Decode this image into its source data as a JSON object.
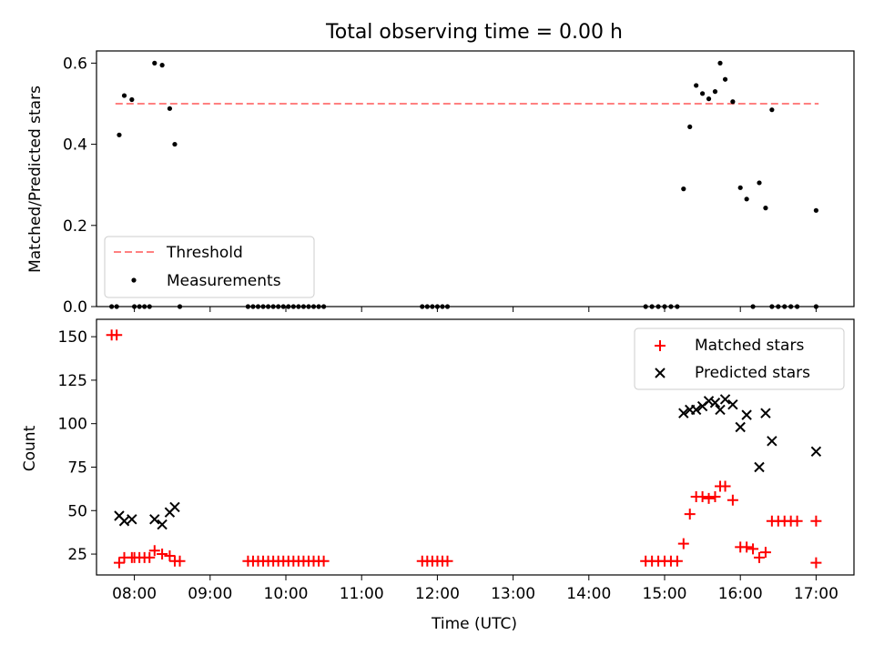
{
  "title": "Total observing time = 0.00 h",
  "colors": {
    "threshold": "#ff8080",
    "measurement": "#000000",
    "matched": "#ff0000",
    "predicted": "#000000"
  },
  "chart_data": [
    {
      "type": "scatter",
      "ylabel": "Matched/Predicted stars",
      "xlabel": "",
      "x_axis": "time (UTC)",
      "xlim": [
        "07:30",
        "17:30"
      ],
      "ylim": [
        0,
        0.63
      ],
      "yticks": [
        0.0,
        0.2,
        0.4,
        0.6
      ],
      "ytick_labels": [
        "0.0",
        "0.2",
        "0.4",
        "0.6"
      ],
      "legend_position": "lower-left",
      "legend": [
        "Threshold",
        "Measurements"
      ],
      "threshold": {
        "name": "Threshold",
        "y": 0.5,
        "x_range": [
          "07:45",
          "17:02"
        ]
      },
      "series": [
        {
          "name": "Measurements",
          "points": [
            [
              "07:42",
              0
            ],
            [
              "07:46",
              0
            ],
            [
              "07:48",
              0.423
            ],
            [
              "07:52",
              0.52
            ],
            [
              "07:58",
              0.51
            ],
            [
              "08:00",
              0
            ],
            [
              "08:04",
              0
            ],
            [
              "08:08",
              0
            ],
            [
              "08:12",
              0
            ],
            [
              "08:16",
              0.6
            ],
            [
              "08:22",
              0.595
            ],
            [
              "08:28",
              0.488
            ],
            [
              "08:32",
              0.4
            ],
            [
              "08:36",
              0
            ],
            [
              "09:30",
              0
            ],
            [
              "09:34",
              0
            ],
            [
              "09:38",
              0
            ],
            [
              "09:42",
              0
            ],
            [
              "09:46",
              0
            ],
            [
              "09:50",
              0
            ],
            [
              "09:54",
              0
            ],
            [
              "09:58",
              0
            ],
            [
              "10:02",
              0
            ],
            [
              "10:06",
              0
            ],
            [
              "10:10",
              0
            ],
            [
              "10:14",
              0
            ],
            [
              "10:18",
              0
            ],
            [
              "10:22",
              0
            ],
            [
              "10:26",
              0
            ],
            [
              "10:30",
              0
            ],
            [
              "11:48",
              0
            ],
            [
              "11:52",
              0
            ],
            [
              "11:56",
              0
            ],
            [
              "12:00",
              0
            ],
            [
              "12:04",
              0
            ],
            [
              "12:08",
              0
            ],
            [
              "14:45",
              0
            ],
            [
              "14:50",
              0
            ],
            [
              "14:55",
              0
            ],
            [
              "15:00",
              0
            ],
            [
              "15:05",
              0
            ],
            [
              "15:10",
              0
            ],
            [
              "15:15",
              0.29
            ],
            [
              "15:20",
              0.443
            ],
            [
              "15:25",
              0.545
            ],
            [
              "15:30",
              0.525
            ],
            [
              "15:35",
              0.512
            ],
            [
              "15:40",
              0.53
            ],
            [
              "15:44",
              0.6
            ],
            [
              "15:48",
              0.56
            ],
            [
              "15:54",
              0.505
            ],
            [
              "16:00",
              0.293
            ],
            [
              "16:05",
              0.265
            ],
            [
              "16:10",
              0
            ],
            [
              "16:15",
              0.305
            ],
            [
              "16:20",
              0.243
            ],
            [
              "16:25",
              0.485
            ],
            [
              "16:25",
              0
            ],
            [
              "16:30",
              0
            ],
            [
              "16:35",
              0
            ],
            [
              "16:40",
              0
            ],
            [
              "16:45",
              0
            ],
            [
              "17:00",
              0.237
            ],
            [
              "17:00",
              0
            ]
          ]
        }
      ]
    },
    {
      "type": "scatter",
      "ylabel": "Count",
      "xlabel": "Time (UTC)",
      "xlim": [
        "07:30",
        "17:30"
      ],
      "ylim": [
        13,
        160
      ],
      "yticks": [
        25,
        50,
        75,
        100,
        125,
        150
      ],
      "ytick_labels": [
        "25",
        "50",
        "75",
        "100",
        "125",
        "150"
      ],
      "xticks": [
        "08:00",
        "09:00",
        "10:00",
        "11:00",
        "12:00",
        "13:00",
        "14:00",
        "15:00",
        "16:00",
        "17:00"
      ],
      "legend_position": "top-right",
      "legend": [
        "Matched stars",
        "Predicted stars"
      ],
      "series": [
        {
          "name": "Matched stars",
          "marker": "plus",
          "points": [
            [
              "07:42",
              151
            ],
            [
              "07:46",
              151
            ],
            [
              "07:48",
              20
            ],
            [
              "07:52",
              23
            ],
            [
              "07:58",
              23
            ],
            [
              "08:00",
              23
            ],
            [
              "08:04",
              23
            ],
            [
              "08:08",
              23
            ],
            [
              "08:12",
              23
            ],
            [
              "08:16",
              27
            ],
            [
              "08:22",
              25
            ],
            [
              "08:28",
              24
            ],
            [
              "08:32",
              21
            ],
            [
              "08:36",
              21
            ],
            [
              "09:30",
              21
            ],
            [
              "09:34",
              21
            ],
            [
              "09:38",
              21
            ],
            [
              "09:42",
              21
            ],
            [
              "09:46",
              21
            ],
            [
              "09:50",
              21
            ],
            [
              "09:54",
              21
            ],
            [
              "09:58",
              21
            ],
            [
              "10:02",
              21
            ],
            [
              "10:06",
              21
            ],
            [
              "10:10",
              21
            ],
            [
              "10:14",
              21
            ],
            [
              "10:18",
              21
            ],
            [
              "10:22",
              21
            ],
            [
              "10:26",
              21
            ],
            [
              "10:30",
              21
            ],
            [
              "11:48",
              21
            ],
            [
              "11:52",
              21
            ],
            [
              "11:56",
              21
            ],
            [
              "12:00",
              21
            ],
            [
              "12:04",
              21
            ],
            [
              "12:08",
              21
            ],
            [
              "14:45",
              21
            ],
            [
              "14:50",
              21
            ],
            [
              "14:55",
              21
            ],
            [
              "15:00",
              21
            ],
            [
              "15:05",
              21
            ],
            [
              "15:10",
              21
            ],
            [
              "15:15",
              31
            ],
            [
              "15:20",
              48
            ],
            [
              "15:25",
              58
            ],
            [
              "15:30",
              58
            ],
            [
              "15:35",
              57
            ],
            [
              "15:40",
              58
            ],
            [
              "15:44",
              64
            ],
            [
              "15:48",
              64
            ],
            [
              "15:54",
              56
            ],
            [
              "16:00",
              29
            ],
            [
              "16:05",
              29
            ],
            [
              "16:10",
              28
            ],
            [
              "16:15",
              23
            ],
            [
              "16:20",
              26
            ],
            [
              "16:25",
              44
            ],
            [
              "16:30",
              44
            ],
            [
              "16:35",
              44
            ],
            [
              "16:40",
              44
            ],
            [
              "16:45",
              44
            ],
            [
              "17:00",
              44
            ],
            [
              "17:00",
              20
            ]
          ]
        },
        {
          "name": "Predicted stars",
          "marker": "x",
          "points": [
            [
              "07:48",
              47
            ],
            [
              "07:52",
              44
            ],
            [
              "07:58",
              45
            ],
            [
              "08:16",
              45
            ],
            [
              "08:22",
              42
            ],
            [
              "08:28",
              49
            ],
            [
              "08:32",
              52
            ],
            [
              "15:15",
              106
            ],
            [
              "15:20",
              108
            ],
            [
              "15:25",
              108
            ],
            [
              "15:30",
              110
            ],
            [
              "15:35",
              113
            ],
            [
              "15:40",
              112
            ],
            [
              "15:44",
              108
            ],
            [
              "15:48",
              114
            ],
            [
              "15:54",
              111
            ],
            [
              "16:00",
              98
            ],
            [
              "16:05",
              105
            ],
            [
              "16:15",
              75
            ],
            [
              "16:20",
              106
            ],
            [
              "16:25",
              90
            ],
            [
              "17:00",
              84
            ]
          ]
        }
      ]
    }
  ]
}
